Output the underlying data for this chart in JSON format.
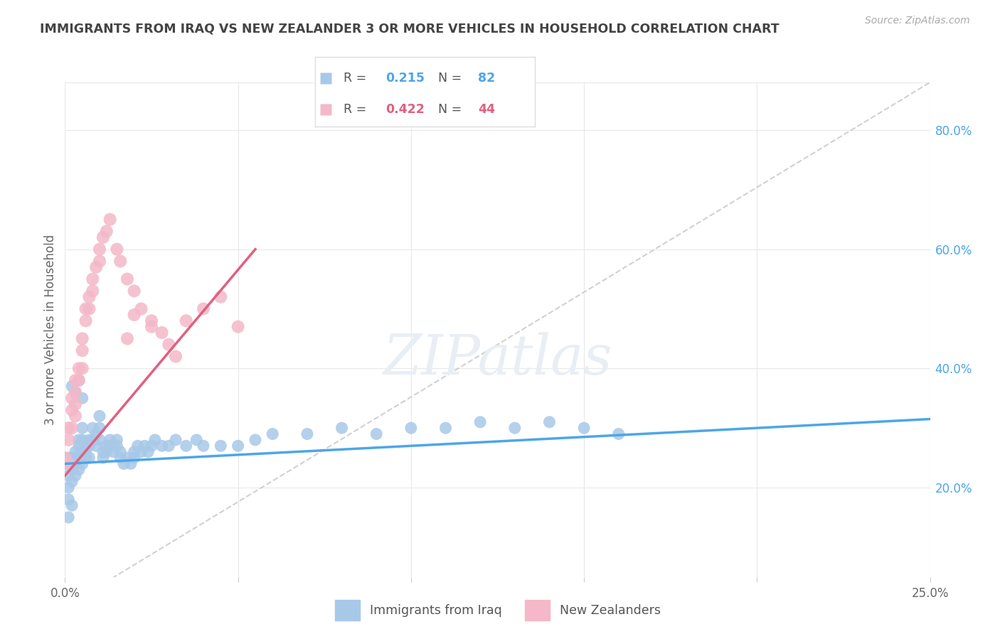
{
  "title": "IMMIGRANTS FROM IRAQ VS NEW ZEALANDER 3 OR MORE VEHICLES IN HOUSEHOLD CORRELATION CHART",
  "source": "Source: ZipAtlas.com",
  "ylabel": "3 or more Vehicles in Household",
  "right_yticklabels": [
    "20.0%",
    "40.0%",
    "60.0%",
    "80.0%"
  ],
  "right_ytick_vals": [
    0.2,
    0.4,
    0.6,
    0.8
  ],
  "blue_R": 0.215,
  "blue_N": 82,
  "pink_R": 0.422,
  "pink_N": 44,
  "legend_label_blue": "Immigrants from Iraq",
  "legend_label_pink": "New Zealanders",
  "blue_color": "#a8c8e8",
  "pink_color": "#f4b8c8",
  "blue_line_color": "#4da6e8",
  "pink_line_color": "#e06080",
  "diag_line_color": "#cccccc",
  "background_color": "#ffffff",
  "grid_color": "#e8e8e8",
  "title_color": "#444444",
  "xmin": 0.0,
  "xmax": 0.25,
  "ymin": 0.05,
  "ymax": 0.88,
  "blue_trend": [
    0.0,
    0.24,
    0.25,
    0.315
  ],
  "pink_trend": [
    0.0,
    0.22,
    0.055,
    0.6
  ],
  "diag": [
    0.0,
    0.0,
    0.25,
    0.88
  ],
  "blue_scatter_x": [
    0.0,
    0.001,
    0.001,
    0.001,
    0.001,
    0.002,
    0.002,
    0.002,
    0.002,
    0.003,
    0.003,
    0.003,
    0.003,
    0.004,
    0.004,
    0.004,
    0.004,
    0.005,
    0.005,
    0.005,
    0.005,
    0.006,
    0.006,
    0.006,
    0.007,
    0.007,
    0.007,
    0.008,
    0.008,
    0.009,
    0.009,
    0.01,
    0.01,
    0.01,
    0.011,
    0.011,
    0.012,
    0.012,
    0.013,
    0.013,
    0.014,
    0.015,
    0.015,
    0.016,
    0.016,
    0.017,
    0.018,
    0.019,
    0.02,
    0.02,
    0.021,
    0.022,
    0.023,
    0.024,
    0.025,
    0.026,
    0.028,
    0.03,
    0.032,
    0.035,
    0.038,
    0.04,
    0.045,
    0.05,
    0.055,
    0.06,
    0.07,
    0.08,
    0.09,
    0.1,
    0.11,
    0.12,
    0.13,
    0.14,
    0.15,
    0.16,
    0.002,
    0.003,
    0.004,
    0.005,
    0.001,
    0.002
  ],
  "blue_scatter_y": [
    0.24,
    0.25,
    0.22,
    0.2,
    0.18,
    0.25,
    0.24,
    0.23,
    0.21,
    0.26,
    0.25,
    0.24,
    0.22,
    0.28,
    0.27,
    0.25,
    0.23,
    0.3,
    0.28,
    0.26,
    0.24,
    0.27,
    0.26,
    0.25,
    0.28,
    0.27,
    0.25,
    0.3,
    0.28,
    0.29,
    0.27,
    0.32,
    0.3,
    0.28,
    0.26,
    0.25,
    0.27,
    0.26,
    0.28,
    0.27,
    0.26,
    0.28,
    0.27,
    0.26,
    0.25,
    0.24,
    0.25,
    0.24,
    0.26,
    0.25,
    0.27,
    0.26,
    0.27,
    0.26,
    0.27,
    0.28,
    0.27,
    0.27,
    0.28,
    0.27,
    0.28,
    0.27,
    0.27,
    0.27,
    0.28,
    0.29,
    0.29,
    0.3,
    0.29,
    0.3,
    0.3,
    0.31,
    0.3,
    0.31,
    0.3,
    0.29,
    0.37,
    0.36,
    0.38,
    0.35,
    0.15,
    0.17
  ],
  "pink_scatter_x": [
    0.0,
    0.001,
    0.001,
    0.001,
    0.002,
    0.002,
    0.002,
    0.003,
    0.003,
    0.003,
    0.003,
    0.004,
    0.004,
    0.005,
    0.005,
    0.005,
    0.006,
    0.006,
    0.007,
    0.007,
    0.008,
    0.008,
    0.009,
    0.01,
    0.01,
    0.011,
    0.012,
    0.013,
    0.015,
    0.016,
    0.018,
    0.02,
    0.022,
    0.025,
    0.028,
    0.03,
    0.032,
    0.035,
    0.04,
    0.045,
    0.05,
    0.025,
    0.02,
    0.018
  ],
  "pink_scatter_y": [
    0.25,
    0.3,
    0.28,
    0.24,
    0.35,
    0.33,
    0.3,
    0.38,
    0.36,
    0.34,
    0.32,
    0.4,
    0.38,
    0.45,
    0.43,
    0.4,
    0.5,
    0.48,
    0.52,
    0.5,
    0.55,
    0.53,
    0.57,
    0.6,
    0.58,
    0.62,
    0.63,
    0.65,
    0.6,
    0.58,
    0.55,
    0.53,
    0.5,
    0.48,
    0.46,
    0.44,
    0.42,
    0.48,
    0.5,
    0.52,
    0.47,
    0.47,
    0.49,
    0.45
  ]
}
